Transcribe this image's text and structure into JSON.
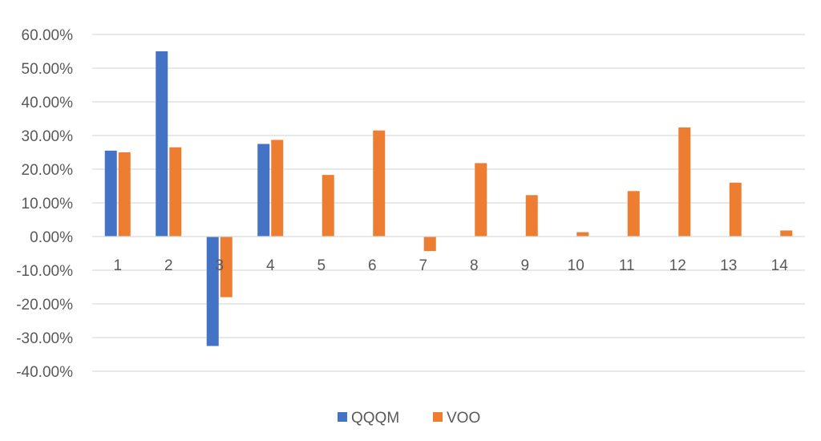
{
  "chart_data": {
    "type": "bar",
    "title": "",
    "xlabel": "",
    "ylabel": "",
    "categories": [
      "1",
      "2",
      "3",
      "4",
      "5",
      "6",
      "7",
      "8",
      "9",
      "10",
      "11",
      "12",
      "13",
      "14"
    ],
    "series": [
      {
        "name": "QQQM",
        "color": "#4472C4",
        "values": [
          25.5,
          55.0,
          -32.5,
          27.5,
          null,
          null,
          null,
          null,
          null,
          null,
          null,
          null,
          null,
          null
        ]
      },
      {
        "name": "VOO",
        "color": "#ED7D31",
        "values": [
          25.0,
          26.5,
          -18.0,
          28.7,
          18.3,
          31.5,
          -4.3,
          21.8,
          12.3,
          1.3,
          13.5,
          32.4,
          16.0,
          1.8
        ]
      }
    ],
    "ylim": [
      -40,
      60
    ],
    "yticks": [
      60,
      50,
      40,
      30,
      20,
      10,
      0,
      -10,
      -20,
      -30,
      -40
    ],
    "ytick_labels": [
      "60.00%",
      "50.00%",
      "40.00%",
      "30.00%",
      "20.00%",
      "10.00%",
      "0.00%",
      "-10.00%",
      "-20.00%",
      "-30.00%",
      "-40.00%"
    ],
    "grid": true,
    "legend_position": "bottom-center"
  }
}
